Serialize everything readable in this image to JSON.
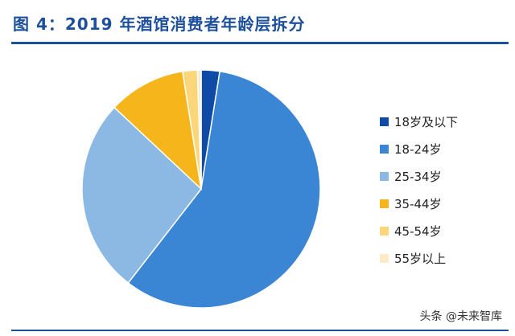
{
  "page_title": "图 4：2019 年酒馆消费者年龄层拆分",
  "watermark": "头条 @未来智库",
  "chart_data": {
    "type": "pie",
    "title": "图 4：2019 年酒馆消费者年龄层拆分",
    "legend_position": "right",
    "start_angle_deg": 0,
    "direction": "clockwise",
    "slices": [
      {
        "label": "18岁及以下",
        "value": 2.5,
        "color": "#0f4aa6"
      },
      {
        "label": "18-24岁",
        "value": 58.0,
        "color": "#3a86d4"
      },
      {
        "label": "25-34岁",
        "value": 26.5,
        "color": "#8cb8e4"
      },
      {
        "label": "35-44岁",
        "value": 10.5,
        "color": "#f7b51c"
      },
      {
        "label": "45-54岁",
        "value": 2.0,
        "color": "#fcd77a"
      },
      {
        "label": "55岁以上",
        "value": 0.5,
        "color": "#fdebc8"
      }
    ]
  }
}
